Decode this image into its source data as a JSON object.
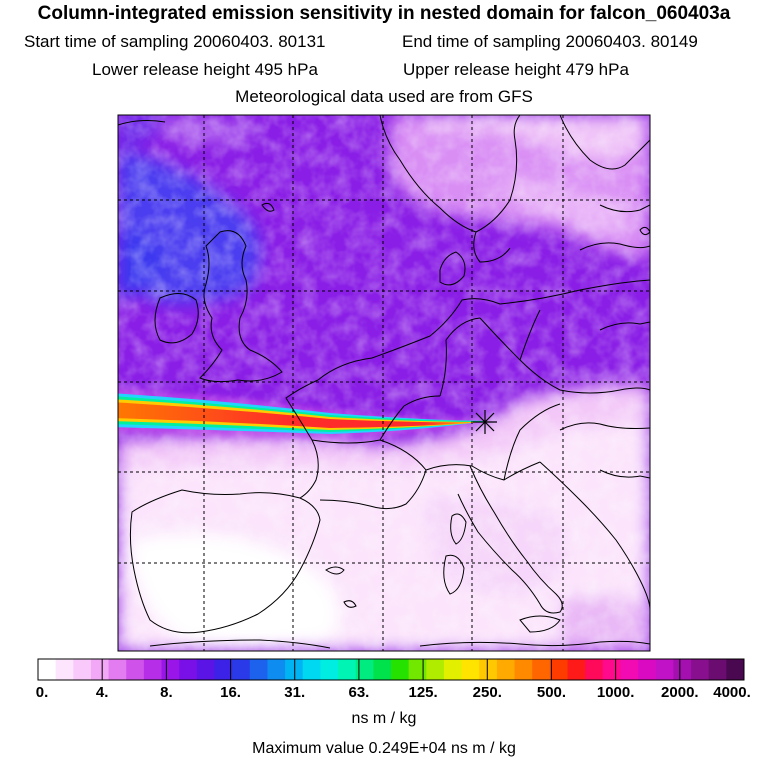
{
  "header": {
    "title": "Column-integrated emission sensitivity in nested domain for falcon_060403a",
    "start_label": "Start time of sampling",
    "start_value": "20060403. 80131",
    "end_label": "End time of sampling",
    "end_value": "20060403. 80149",
    "lower_label": "Lower release height",
    "lower_value": "495 hPa",
    "upper_label": "Upper release height",
    "upper_value": "479 hPa",
    "met_text": "Meteorological data used are from GFS"
  },
  "map": {
    "release_marker": "star-icon",
    "colors": {
      "background_purple": "#8a1ee6",
      "blue_region": "#4b3cf0",
      "light_region": "#f3c8f8",
      "plume_core": "#ff2a2a",
      "plume_mid": "#ffcc00",
      "plume_outer": "#22d4ff",
      "coastline": "#000000"
    }
  },
  "colorbar": {
    "unit": "ns m / kg",
    "tick_labels": [
      "0.",
      "4.",
      "8.",
      "16.",
      "31.",
      "63.",
      "125.",
      "250.",
      "500.",
      "1000.",
      "2000.",
      "4000."
    ],
    "colors": [
      "#ffffff",
      "#fde6fd",
      "#f8c9fa",
      "#f2a8f6",
      "#e37cf1",
      "#cf52ea",
      "#b62ee8",
      "#9a16e8",
      "#7a10e8",
      "#5a14e6",
      "#3c22e6",
      "#2a3ae8",
      "#1c62ec",
      "#0e8cf0",
      "#00b4f4",
      "#00d8f2",
      "#00eee2",
      "#00f4b4",
      "#00ec80",
      "#00e24c",
      "#26e200",
      "#72e800",
      "#b0ec00",
      "#e2f000",
      "#ffe400",
      "#ffc800",
      "#ffaa00",
      "#ff8a00",
      "#ff6600",
      "#ff3c00",
      "#ff1a1a",
      "#ff0a5a",
      "#ff0a8c",
      "#f20ab2",
      "#da0ac2",
      "#c212c8",
      "#a410b0",
      "#88108e",
      "#6a0c70",
      "#4a0850"
    ]
  },
  "footer": {
    "max_label": "Maximum value",
    "max_value": "0.249E+04",
    "max_unit": "ns m / kg"
  }
}
